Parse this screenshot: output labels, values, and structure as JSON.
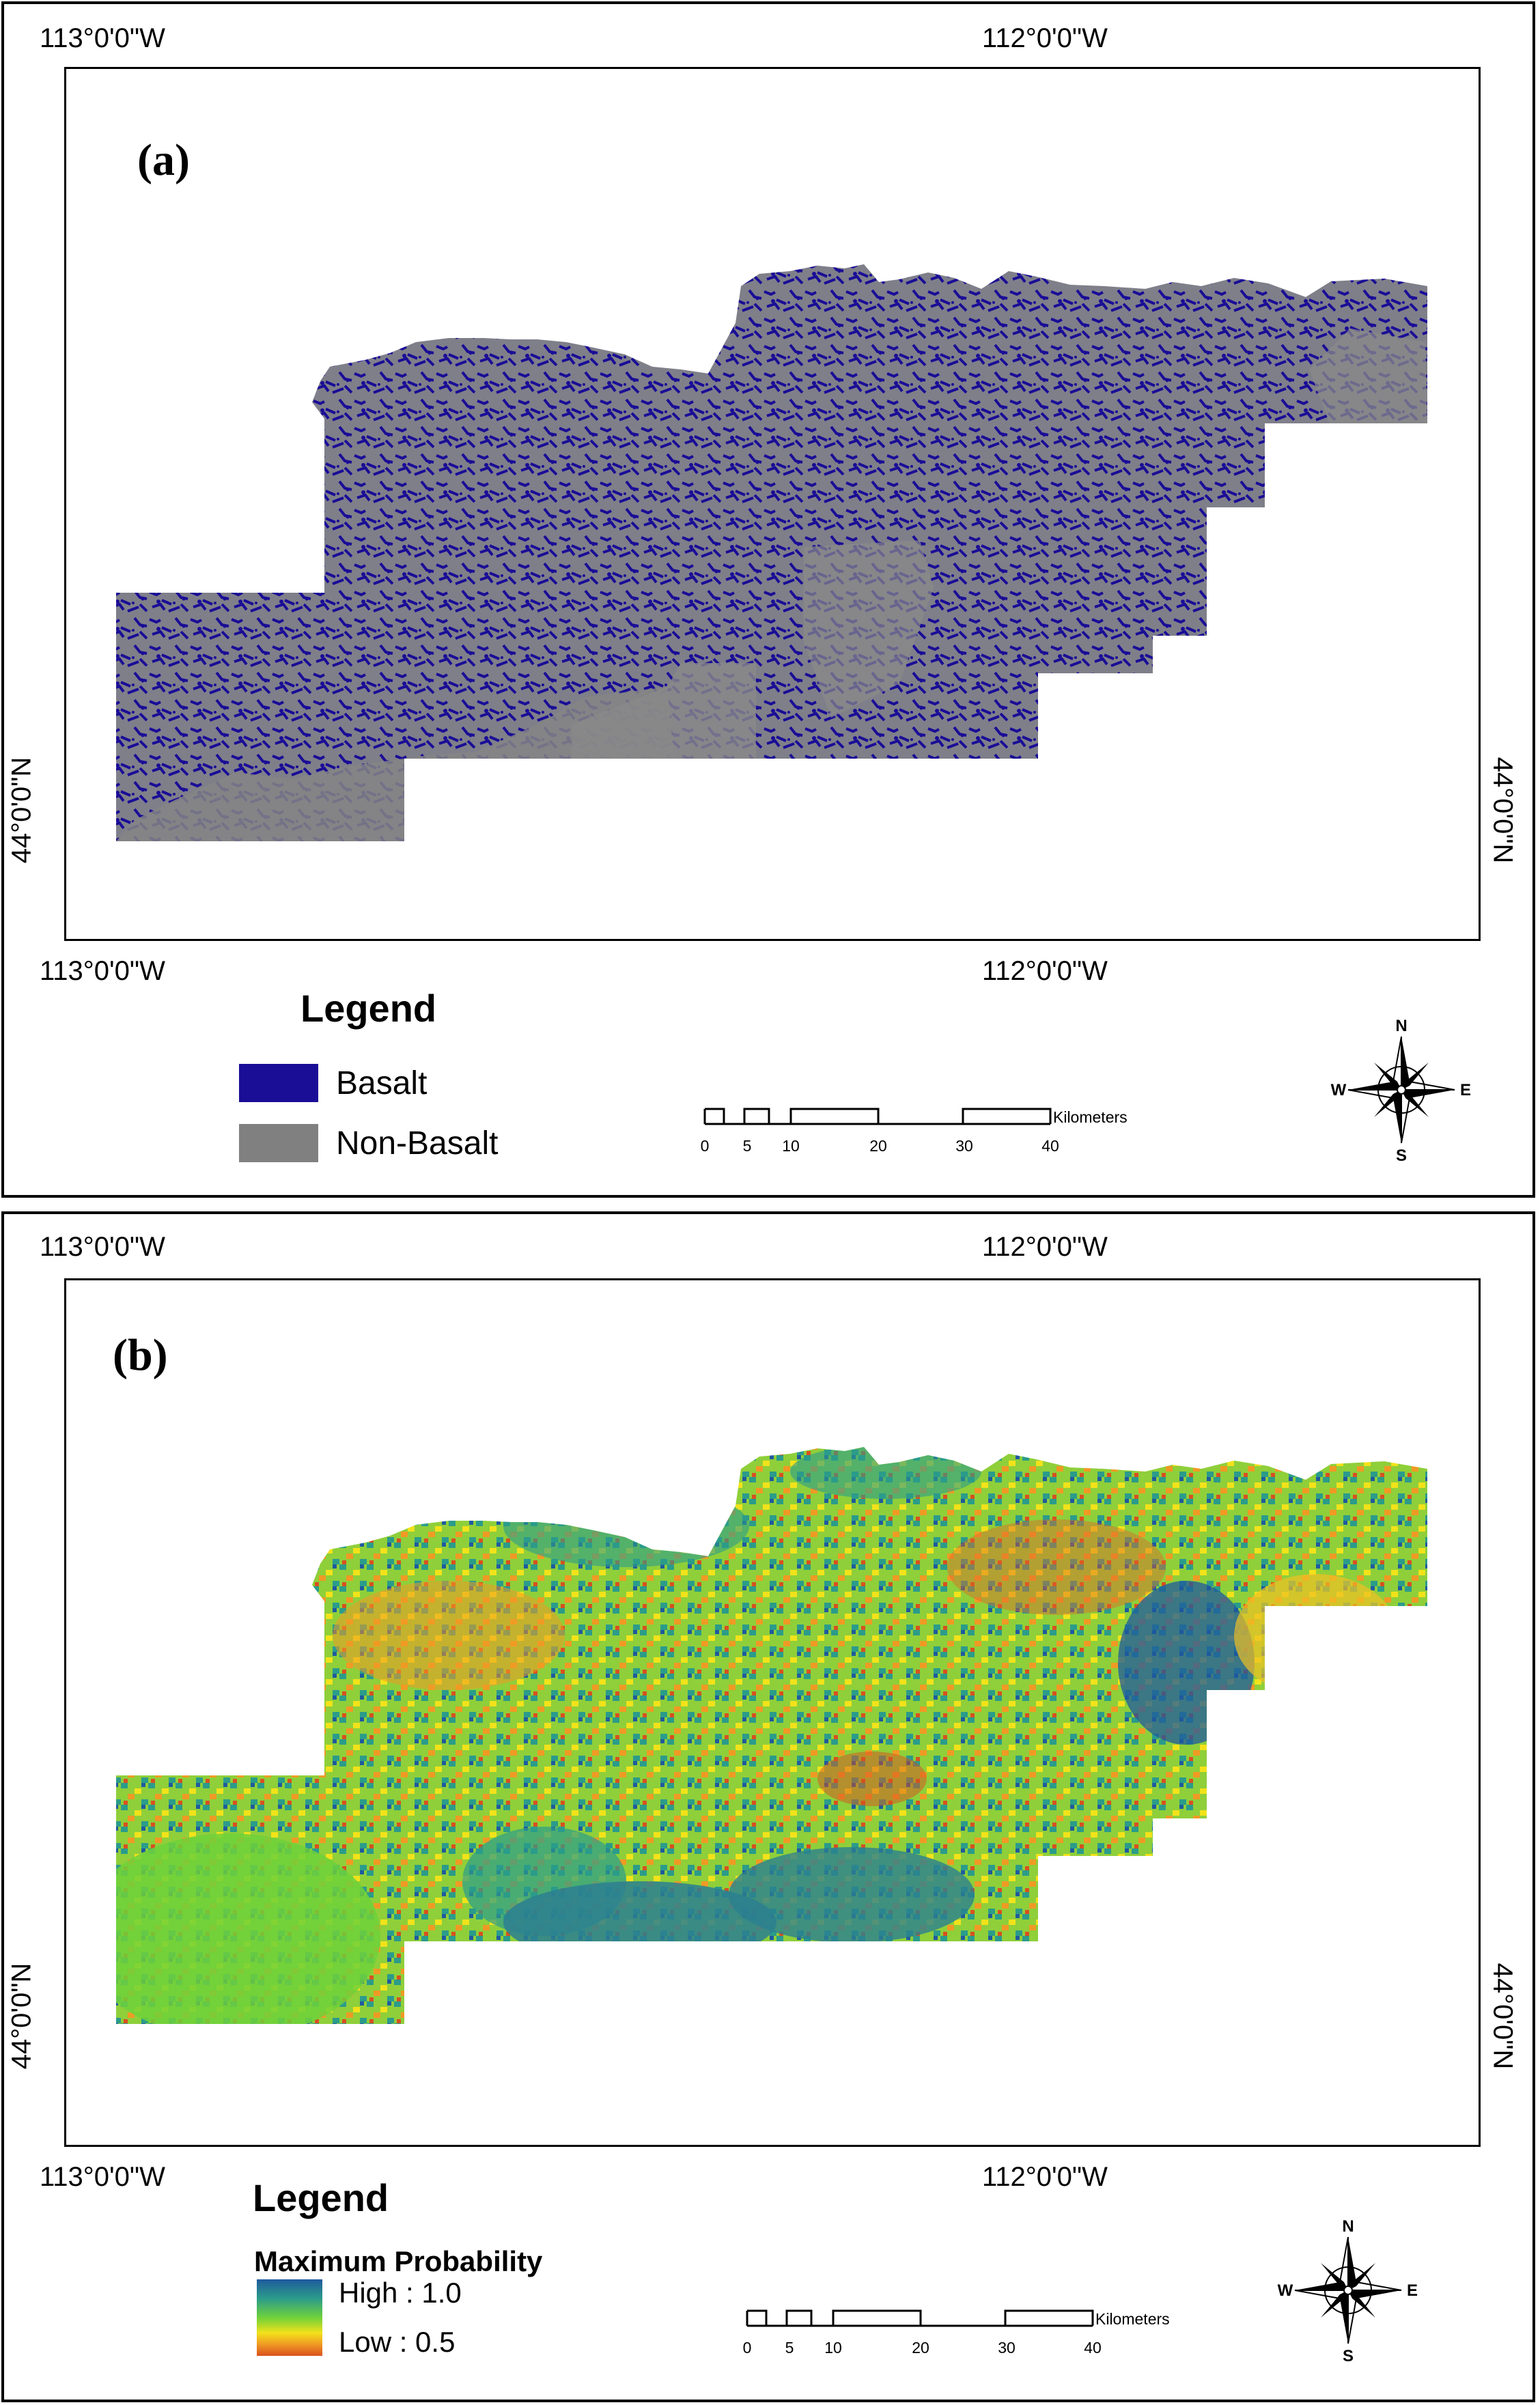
{
  "panel_a": {
    "label": "(a)",
    "graticule": {
      "lon_left": "113°0'0\"W",
      "lon_right": "112°0'0\"W",
      "lat": "44°0'0\"N"
    },
    "legend": {
      "title": "Legend",
      "items": [
        {
          "label": "Basalt",
          "color": "#1a0d96"
        },
        {
          "label": "Non-Basalt",
          "color": "#808080"
        }
      ]
    },
    "scalebar": {
      "ticks": [
        "0",
        "5",
        "10",
        "20",
        "30",
        "40"
      ],
      "unit": "Kilometers"
    },
    "compass": {
      "n": "N",
      "s": "S",
      "e": "E",
      "w": "W"
    }
  },
  "panel_b": {
    "label": "(b)",
    "graticule": {
      "lon_left": "113°0'0\"W",
      "lon_right": "112°0'0\"W",
      "lat": "44°0'0\"N"
    },
    "legend": {
      "title": "Legend",
      "subtitle": "Maximum Probability",
      "high_label": "High : 1.0",
      "low_label": "Low : 0.5",
      "ramp_colors": [
        "#1f5a9e",
        "#2b9c8a",
        "#6fd13a",
        "#f2e21a",
        "#f09a24",
        "#d9501f"
      ]
    },
    "scalebar": {
      "ticks": [
        "0",
        "5",
        "10",
        "20",
        "30",
        "40"
      ],
      "unit": "Kilometers"
    },
    "compass": {
      "n": "N",
      "s": "S",
      "e": "E",
      "w": "W"
    }
  }
}
